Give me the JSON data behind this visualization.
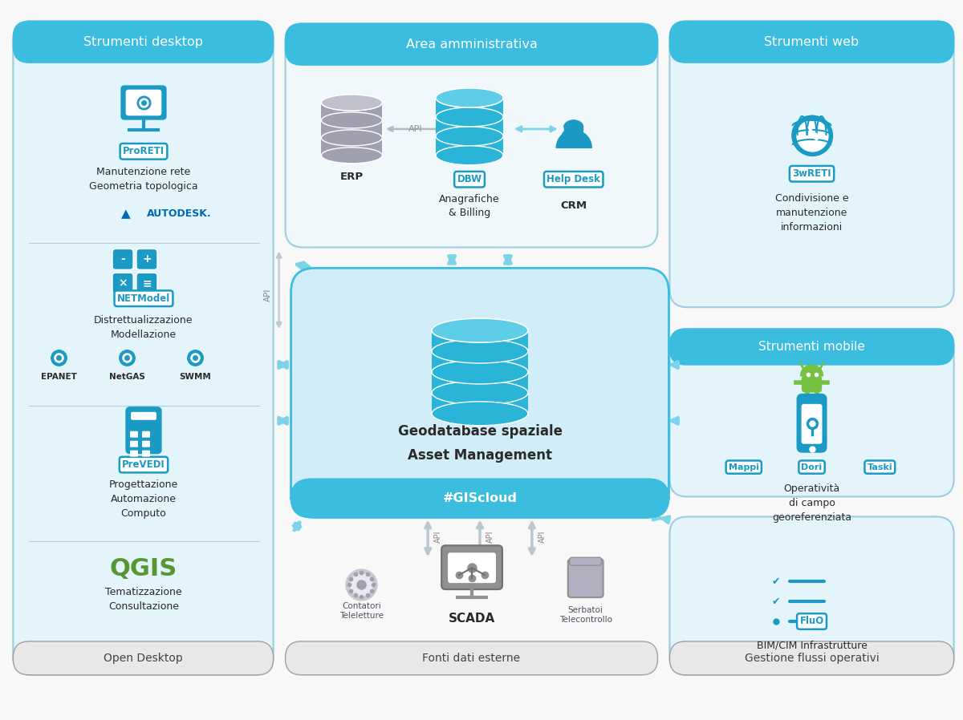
{
  "bg_color": "#f8f8f8",
  "panel_light_blue": "#e4f4fb",
  "panel_header_blue": "#3bbde0",
  "panel_gray_bg": "#e8e8e8",
  "panel_gray_header": "#b8b8c0",
  "center_box_bg": "#d0edf8",
  "center_box_border": "#3bbde0",
  "center_bar_bg": "#3bbde0",
  "arrow_blue": "#7dd4ea",
  "arrow_gray": "#b8c8d0",
  "label_blue": "#1a9ac4",
  "text_dark": "#2a2a2a",
  "text_gray": "#555555",
  "qgis_green": "#589632",
  "autodesk_blue": "#0069b4",
  "db_blue": "#2ab5d8",
  "db_gray": "#a0a0b0",
  "android_green": "#78c040",
  "sections": {
    "desktop_title": "Strumenti desktop",
    "desktop_footer": "Open Desktop",
    "admin_title": "Area amministrativa",
    "fonti_footer": "Fonti dati esterne",
    "web_title": "Strumenti web",
    "mobile_title": "Strumenti mobile",
    "gestione_footer": "Gestione flussi operativi"
  },
  "center_text1": "Geodatabase spaziale",
  "center_text2": "Asset Management",
  "center_bar_text": "#GIScloud",
  "proreti": "ProRETI",
  "proreti_desc": "Manutenzione rete\nGeometria topologica",
  "netmodel": "NETModel",
  "netmodel_desc": "Distrettualizzazione\nModellazione",
  "prevedi": "PreVEDI",
  "prevedi_desc": "Progettazione\nAutomazione\nComputo",
  "qgis_desc": "Tematizzazione\nConsultazione",
  "epanet": "EPANET",
  "netgas": "NetGAS",
  "swmm": "SWMM",
  "dbw": "DBW",
  "helpdesk": "Help Desk",
  "erp": "ERP",
  "anagrafiche": "Anagrafiche\n& Billing",
  "crm": "CRM",
  "wreti": "3wRETI",
  "web_desc": "Condivisione e\nmanutenzione\ninformazioni",
  "mappi": "Mappi",
  "dori": "Dori",
  "taski": "Taski",
  "mobile_desc": "Operatività\ndi campo\ngeoreferenziata",
  "fluo": "FluO",
  "bimcim": "BIM/CIM Infrastrutture",
  "scada": "SCADA",
  "contatori": "Contatori\nTeleletture",
  "serbatoi": "Serbatoi\nTelecontrollo"
}
